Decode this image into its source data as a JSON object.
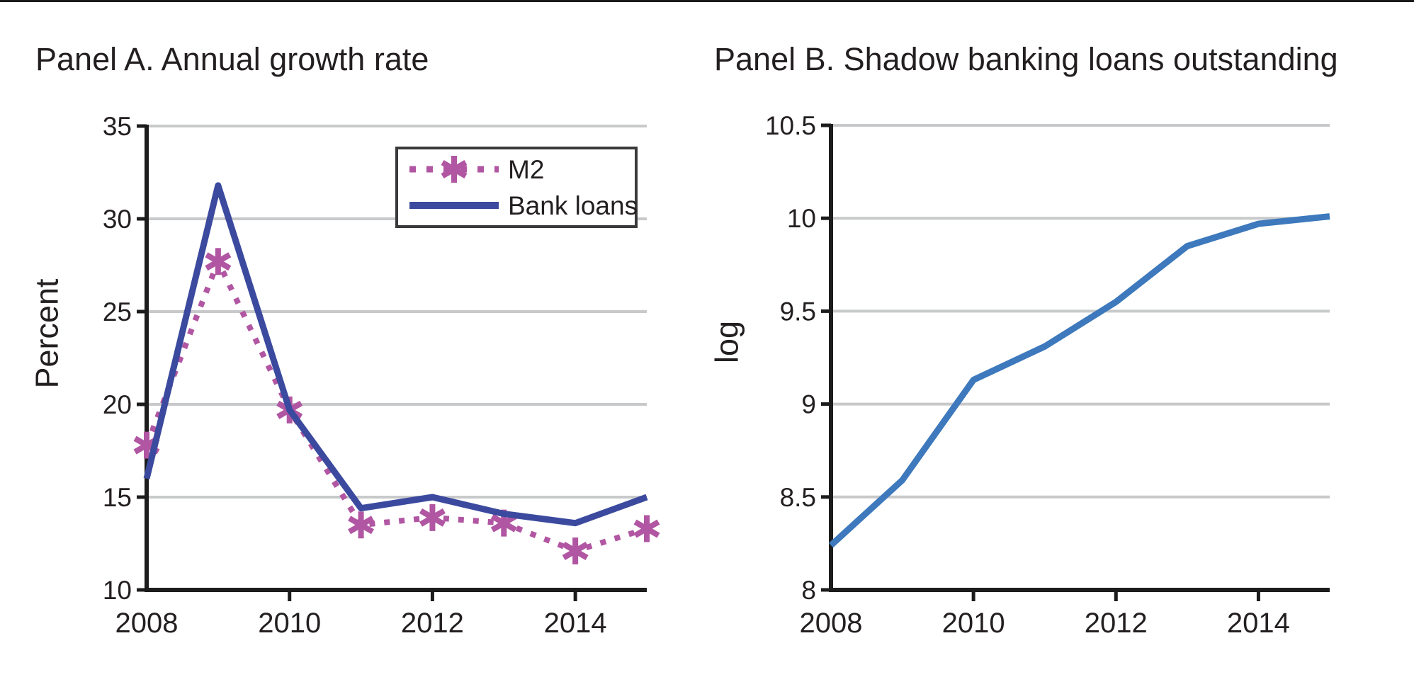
{
  "figure": {
    "background": "#ffffff",
    "top_rule_color": "#1a1a1a",
    "text_color": "#231f20",
    "grid_color": "#c8c9ca",
    "axis_color": "#1c1c1c",
    "legend_border_color": "#3a3a3c"
  },
  "chart_data": [
    {
      "type": "line",
      "title": "Panel A. Annual growth rate",
      "xlabel": "",
      "ylabel": "Percent",
      "x": [
        2008,
        2009,
        2010,
        2011,
        2012,
        2013,
        2014,
        2015
      ],
      "xlim": [
        2008,
        2015
      ],
      "ylim": [
        10,
        35
      ],
      "xticks": [
        2008,
        2010,
        2012,
        2014
      ],
      "yticks": [
        10,
        15,
        20,
        25,
        30,
        35
      ],
      "grid": true,
      "legend_position": "upper right",
      "series": [
        {
          "name": "M2",
          "color": "#b156a2",
          "style": "dotted",
          "marker": "asterisk",
          "values": [
            17.8,
            27.7,
            19.7,
            13.5,
            13.9,
            13.6,
            12.1,
            13.3
          ]
        },
        {
          "name": "Bank loans",
          "color": "#3b4a9e",
          "style": "solid",
          "marker": "none",
          "values": [
            16.0,
            31.8,
            19.7,
            14.4,
            15.0,
            14.1,
            13.6,
            15.0
          ]
        }
      ]
    },
    {
      "type": "line",
      "title": "Panel B. Shadow banking loans outstanding",
      "xlabel": "",
      "ylabel": "log",
      "x": [
        2008,
        2009,
        2010,
        2011,
        2012,
        2013,
        2014,
        2015
      ],
      "xlim": [
        2008,
        2015
      ],
      "ylim": [
        8,
        10.5
      ],
      "xticks": [
        2008,
        2010,
        2012,
        2014
      ],
      "yticks": [
        8,
        8.5,
        9,
        9.5,
        10,
        10.5
      ],
      "grid": true,
      "legend_position": "none",
      "series": [
        {
          "name": "Shadow banking loans outstanding",
          "color": "#3d79bc",
          "style": "solid",
          "marker": "none",
          "values": [
            8.24,
            8.59,
            9.13,
            9.31,
            9.55,
            9.85,
            9.97,
            10.01
          ]
        }
      ]
    }
  ]
}
